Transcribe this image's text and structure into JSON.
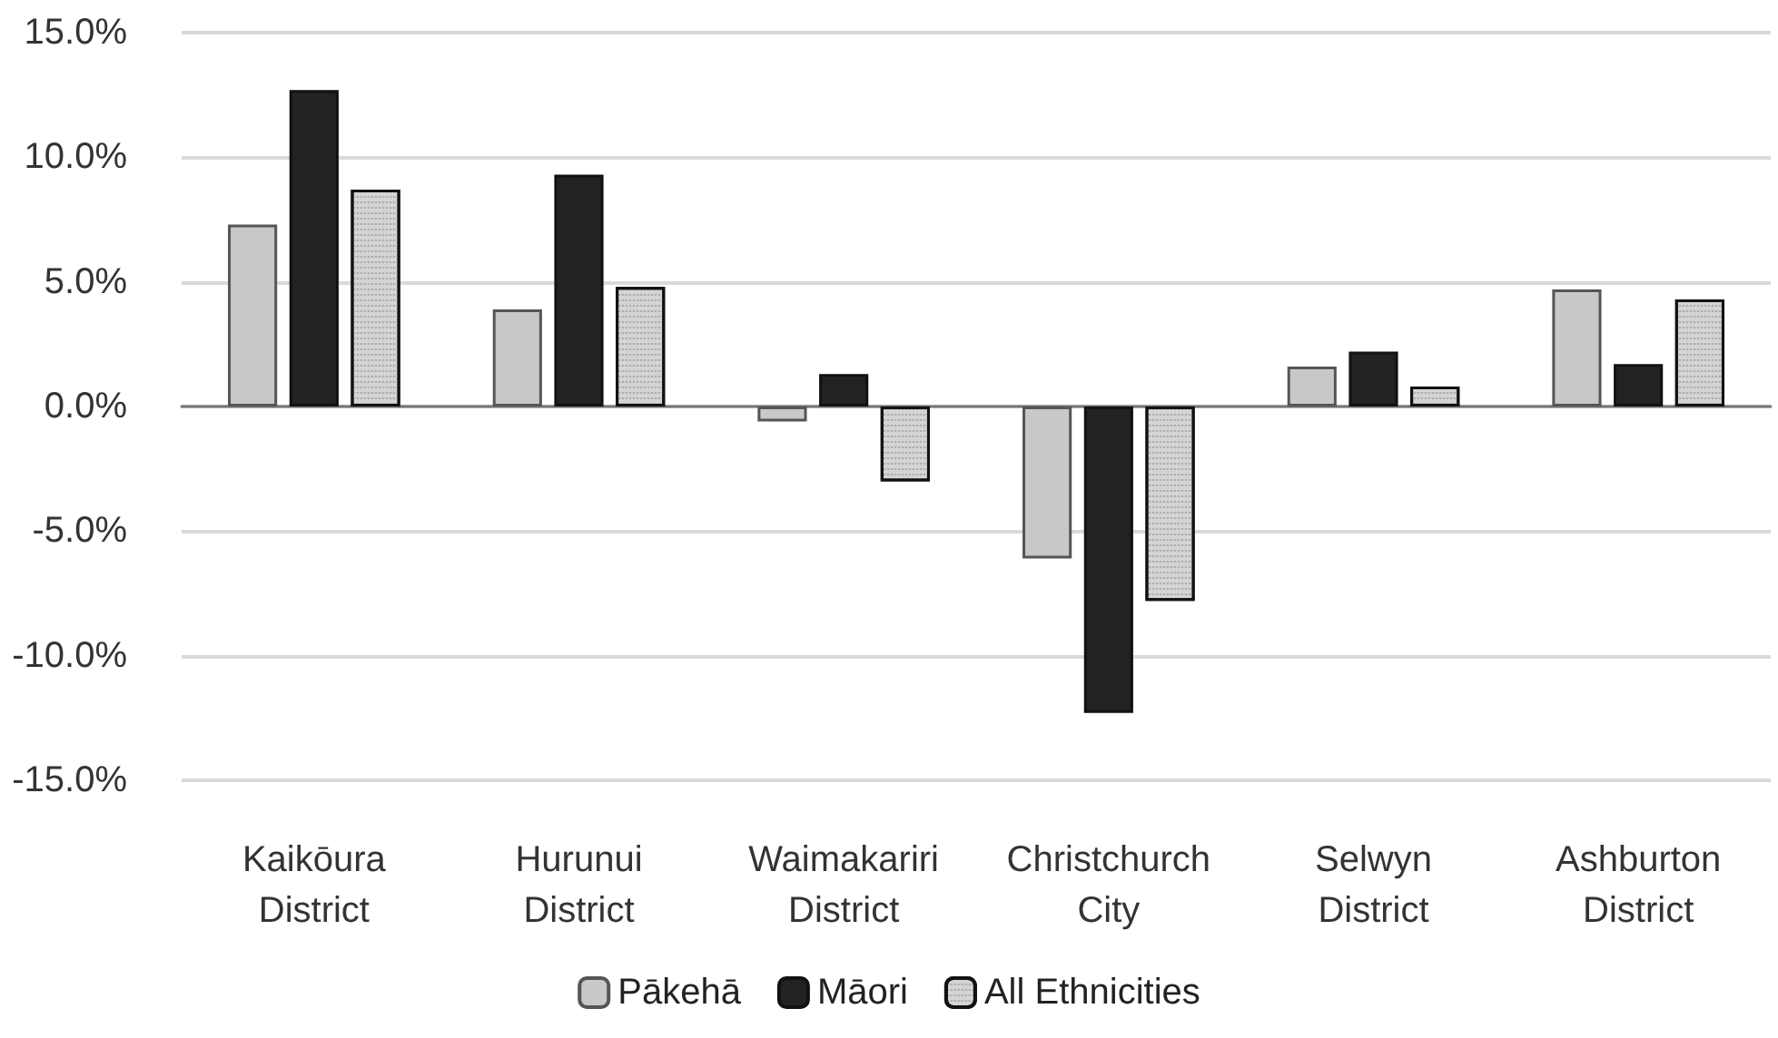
{
  "chart_data": {
    "type": "bar",
    "categories": [
      "Kaikōura\nDistrict",
      "Hurunui\nDistrict",
      "Waimakariri\nDistrict",
      "Christchurch\nCity",
      "Selwyn\nDistrict",
      "Ashburton\nDistrict"
    ],
    "series": [
      {
        "name": "Pākehā",
        "color": "#c8c8c8",
        "values": [
          7.3,
          3.9,
          -0.6,
          -6.1,
          1.6,
          4.7
        ]
      },
      {
        "name": "Māori",
        "color": "#222222",
        "values": [
          12.7,
          9.3,
          1.3,
          -12.3,
          2.2,
          1.7
        ]
      },
      {
        "name": "All Ethnicities",
        "color": "#d4d4d4",
        "values": [
          8.7,
          4.8,
          -3.0,
          -7.8,
          0.8,
          4.3
        ]
      }
    ],
    "ylim": [
      -15,
      15
    ],
    "yticks": [
      {
        "value": -15,
        "label": "-15.0%"
      },
      {
        "value": -10,
        "label": "-10.0%"
      },
      {
        "value": -5,
        "label": "-5.0%"
      },
      {
        "value": 0,
        "label": "0.0%"
      },
      {
        "value": 5,
        "label": "5.0%"
      },
      {
        "value": 10,
        "label": "10.0%"
      },
      {
        "value": 15,
        "label": "15.0%"
      }
    ],
    "grid": "y",
    "legend": "bottom"
  }
}
